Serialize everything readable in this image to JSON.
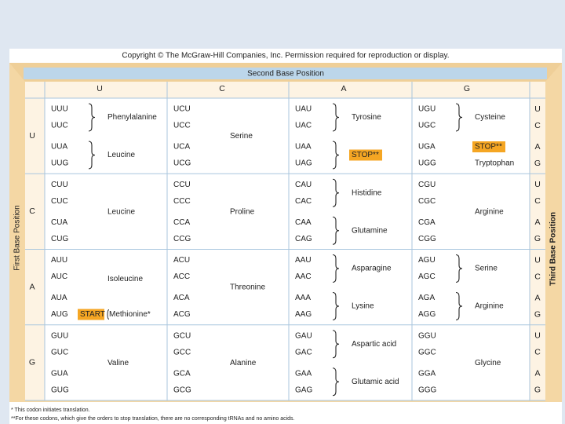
{
  "header": {
    "copyright": "Copyright © The McGraw-Hill Companies, Inc. Permission required for reproduction or display.",
    "second_base": "Second Base Position",
    "first_base": "First Base Position",
    "third_base": "Third Base Position"
  },
  "columns": [
    "U",
    "C",
    "A",
    "G"
  ],
  "third_letters": [
    "U",
    "C",
    "A",
    "G"
  ],
  "table": {
    "rows": [
      {
        "base": "U",
        "cells": [
          [
            {
              "codons": [
                "UUU",
                "UUC"
              ],
              "amino": "Phenylalanine"
            },
            {
              "codons": [
                "UUA",
                "UUG"
              ],
              "amino": "Leucine"
            }
          ],
          [
            {
              "codons": [
                "UCU",
                "UCC",
                "UCA",
                "UCG"
              ],
              "amino": "Serine"
            }
          ],
          [
            {
              "codons": [
                "UAU",
                "UAC"
              ],
              "amino": "Tyrosine"
            },
            {
              "codons": [
                "UAA",
                "UAG"
              ],
              "amino": "STOP**",
              "highlight": true
            }
          ],
          [
            {
              "codons": [
                "UGU",
                "UGC"
              ],
              "amino": "Cysteine"
            },
            {
              "codons": [
                "UGA"
              ],
              "amino": "STOP**",
              "highlight": true
            },
            {
              "codons": [
                "UGG"
              ],
              "amino": "Tryptophan"
            }
          ]
        ]
      },
      {
        "base": "C",
        "cells": [
          [
            {
              "codons": [
                "CUU",
                "CUC",
                "CUA",
                "CUG"
              ],
              "amino": "Leucine"
            }
          ],
          [
            {
              "codons": [
                "CCU",
                "CCC",
                "CCA",
                "CCG"
              ],
              "amino": "Proline"
            }
          ],
          [
            {
              "codons": [
                "CAU",
                "CAC"
              ],
              "amino": "Histidine"
            },
            {
              "codons": [
                "CAA",
                "CAG"
              ],
              "amino": "Glutamine"
            }
          ],
          [
            {
              "codons": [
                "CGU",
                "CGC",
                "CGA",
                "CGG"
              ],
              "amino": "Arginine"
            }
          ]
        ]
      },
      {
        "base": "A",
        "cells": [
          [
            {
              "codons": [
                "AUU",
                "AUC",
                "AUA"
              ],
              "amino": "Isoleucine"
            },
            {
              "codons": [
                "AUG"
              ],
              "start": "START",
              "amino": "Methionine*"
            }
          ],
          [
            {
              "codons": [
                "ACU",
                "ACC",
                "ACA",
                "ACG"
              ],
              "amino": "Threonine"
            }
          ],
          [
            {
              "codons": [
                "AAU",
                "AAC"
              ],
              "amino": "Asparagine"
            },
            {
              "codons": [
                "AAA",
                "AAG"
              ],
              "amino": "Lysine"
            }
          ],
          [
            {
              "codons": [
                "AGU",
                "AGC"
              ],
              "amino": "Serine"
            },
            {
              "codons": [
                "AGA",
                "AGG"
              ],
              "amino": "Arginine"
            }
          ]
        ]
      },
      {
        "base": "G",
        "cells": [
          [
            {
              "codons": [
                "GUU",
                "GUC",
                "GUA",
                "GUG"
              ],
              "amino": "Valine"
            }
          ],
          [
            {
              "codons": [
                "GCU",
                "GCC",
                "GCA",
                "GCG"
              ],
              "amino": "Alanine"
            }
          ],
          [
            {
              "codons": [
                "GAU",
                "GAC"
              ],
              "amino": "Aspartic acid"
            },
            {
              "codons": [
                "GAA",
                "GAG"
              ],
              "amino": "Glutamic acid"
            }
          ],
          [
            {
              "codons": [
                "GGU",
                "GGC",
                "GGA",
                "GGG"
              ],
              "amino": "Glycine"
            }
          ]
        ]
      }
    ]
  },
  "footnotes": [
    "* This codon initiates translation.",
    "**For these codons, which give the orders to stop translation, there are no corresponding tRNAs and no amino acids."
  ]
}
